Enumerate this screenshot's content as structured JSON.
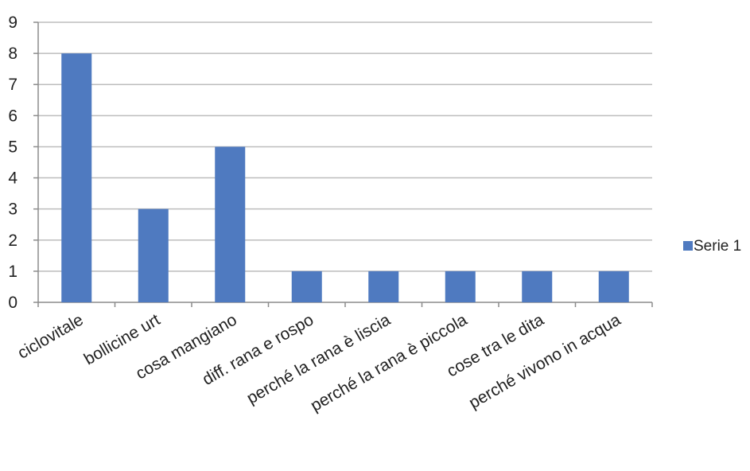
{
  "chart_data": {
    "type": "bar",
    "categories": [
      "ciclovitale",
      "bollicine urt",
      "cosa mangiano",
      "diff. rana e rospo",
      "perché la rana è liscia",
      "perché la rana è piccola",
      "cose tra le dita",
      "perché vivono in acqua"
    ],
    "series": [
      {
        "name": "Serie 1",
        "values": [
          8,
          3,
          5,
          1,
          1,
          1,
          1,
          1
        ]
      }
    ],
    "ylim": [
      0,
      9
    ],
    "yticks": [
      "0",
      "1",
      "2",
      "3",
      "4",
      "5",
      "6",
      "7",
      "8",
      "9"
    ],
    "grid": true,
    "legend_position": "right",
    "bar_color": "#4f7ac0"
  }
}
